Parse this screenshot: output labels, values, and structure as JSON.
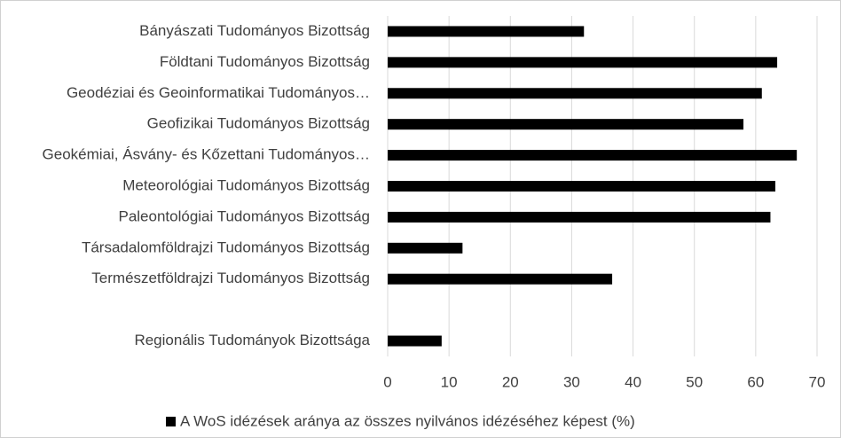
{
  "chart_data": {
    "type": "bar",
    "orientation": "horizontal",
    "categories": [
      "Bányászati Tudományos Bizottság",
      "Földtani Tudományos Bizottság",
      "Geodéziai és Geoinformatikai Tudományos…",
      "Geofizikai Tudományos Bizottság",
      "Geokémiai, Ásvány- és Kőzettani Tudományos…",
      "Meteorológiai Tudományos Bizottság",
      "Paleontológiai Tudományos Bizottság",
      "Társadalomföldrajzi Tudományos Bizottság",
      "Természetföldrajzi Tudományos Bizottság",
      null,
      "Regionális Tudományok Bizottsága"
    ],
    "series": [
      {
        "name": "A WoS idézések aránya az összes nyilvános idézéséhez képest (%)",
        "color": "#000000",
        "values": [
          32,
          63.5,
          61,
          58,
          66.7,
          63.2,
          62.4,
          12.2,
          36.6,
          null,
          8.8
        ]
      }
    ],
    "xlim": [
      0,
      70
    ],
    "xticks": [
      0,
      10,
      20,
      30,
      40,
      50,
      60,
      70
    ],
    "grid": true,
    "legend": "bottom"
  }
}
